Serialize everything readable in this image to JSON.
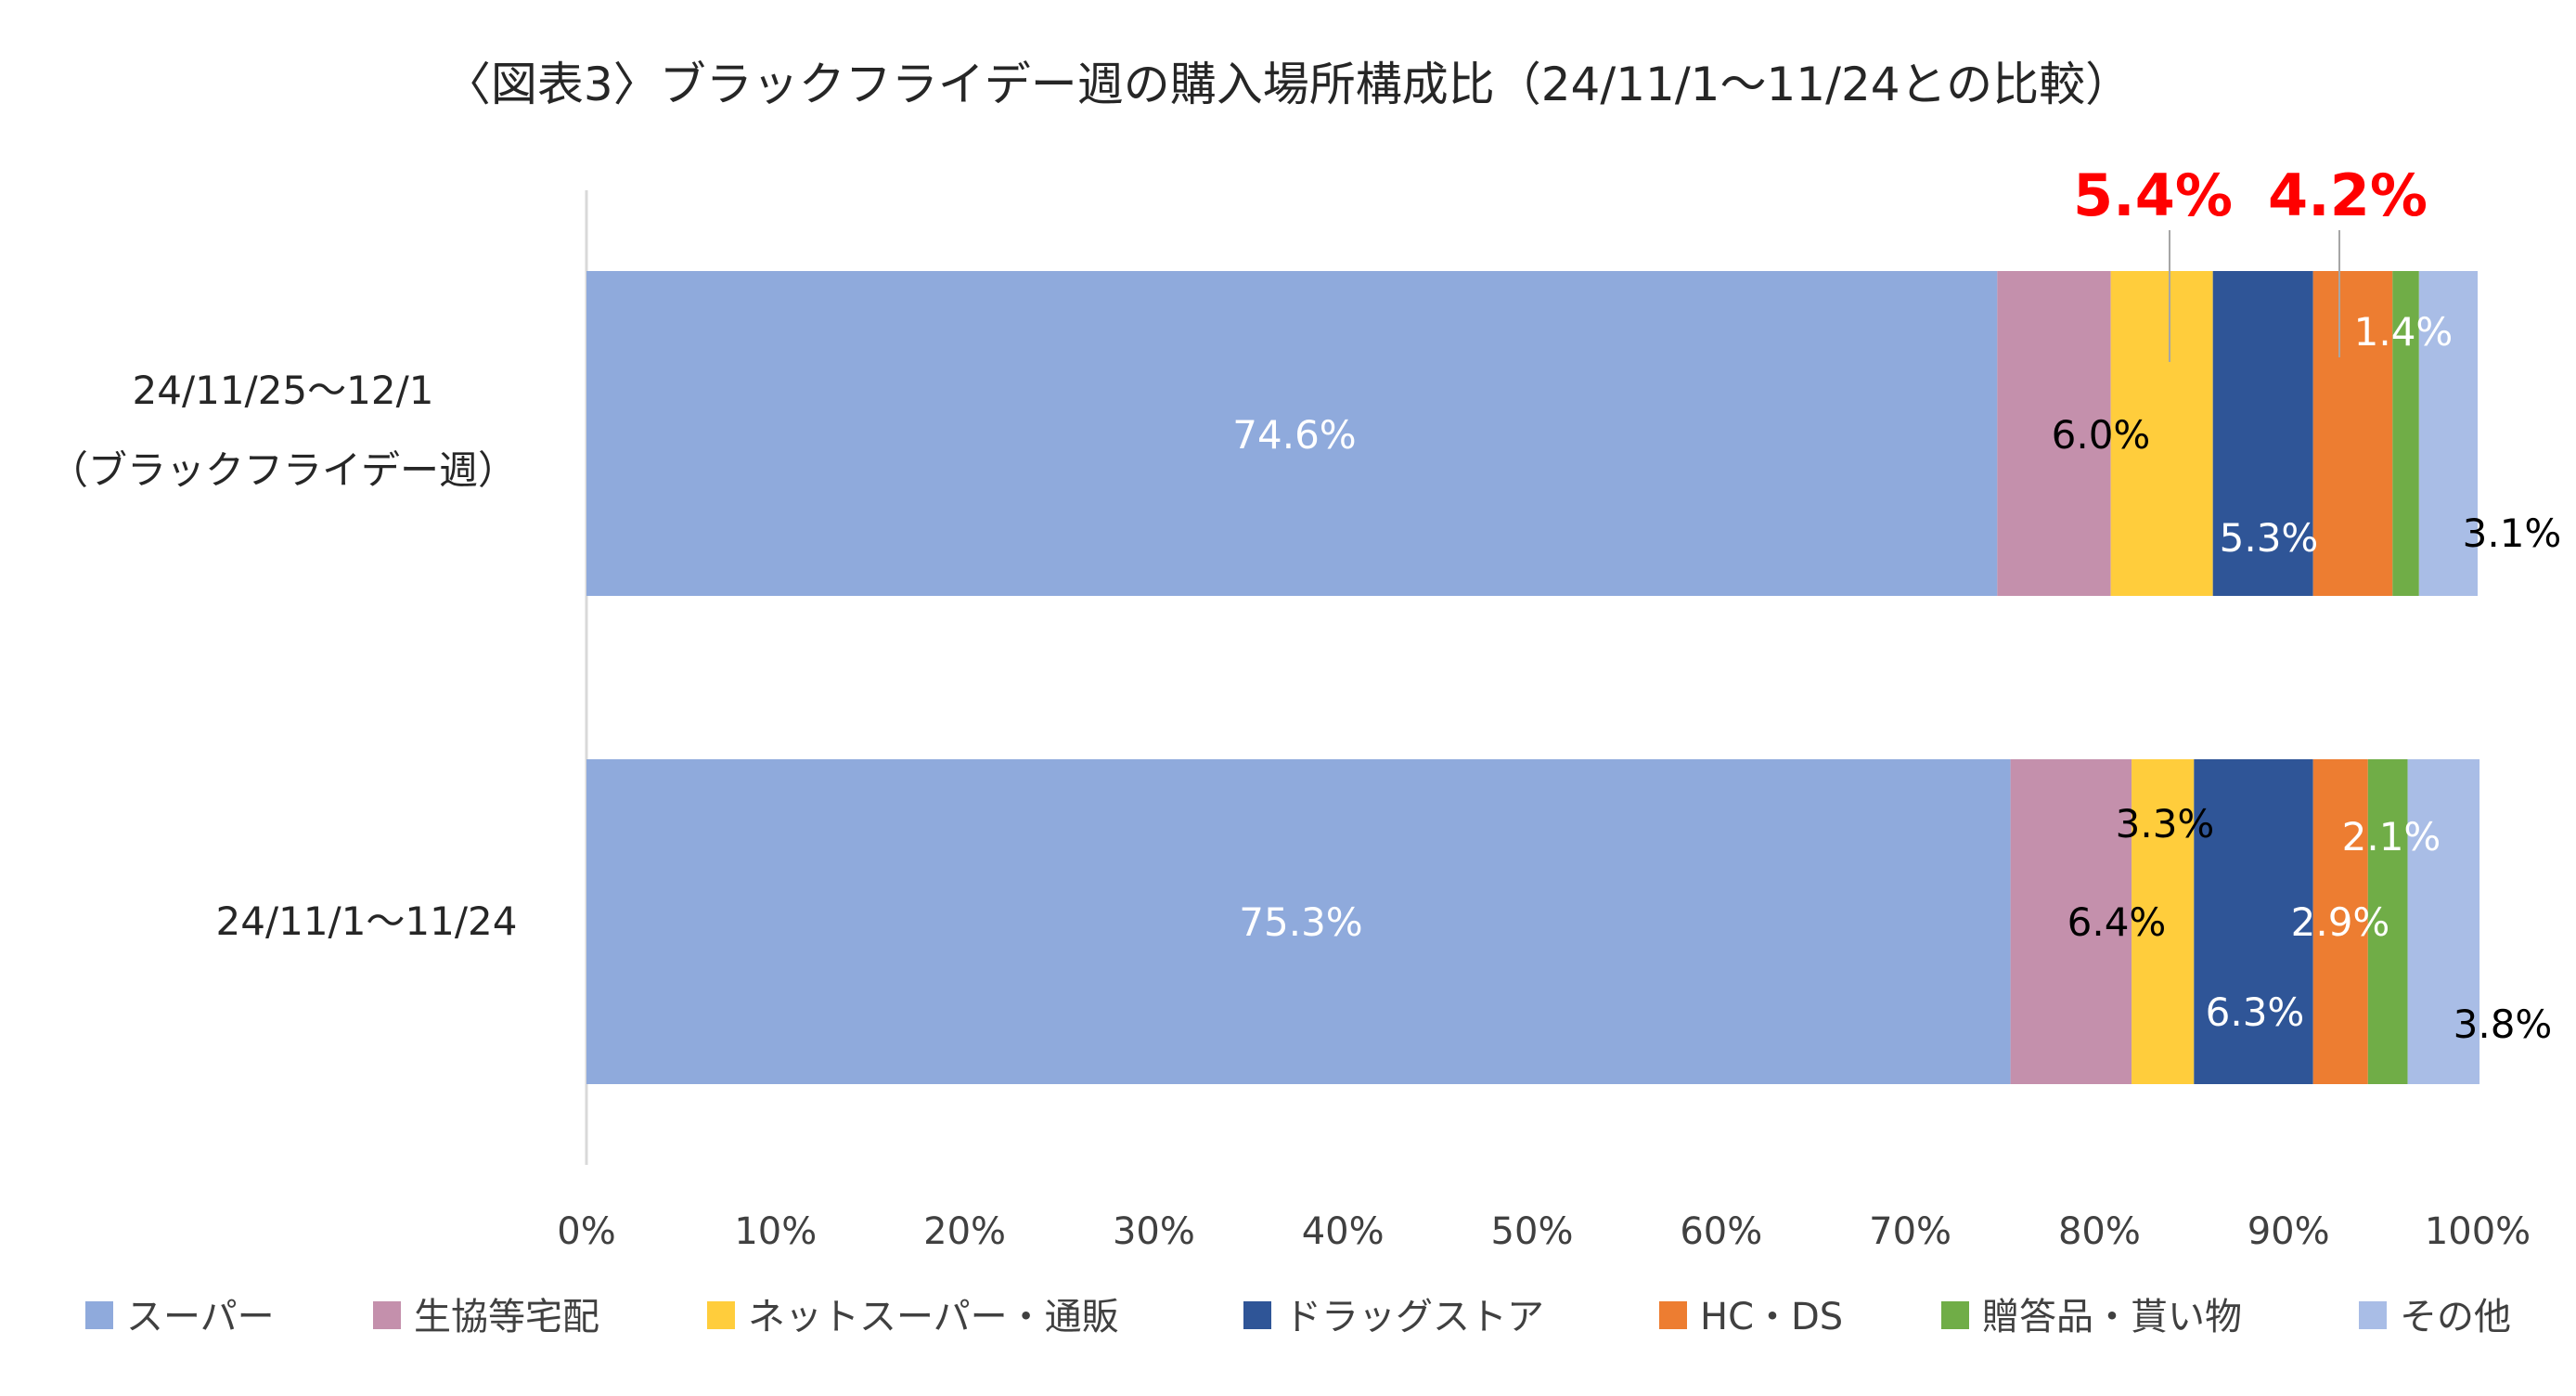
{
  "chart_data": {
    "type": "bar",
    "orientation": "horizontal",
    "stacked": "100%",
    "title": "〈図表3〉ブラックフライデー週の購入場所構成比（24/11/1～11/24との比較）",
    "categories": [
      {
        "lines": [
          "24/11/25～12/1",
          "（ブラックフライデー週）"
        ]
      },
      {
        "lines": [
          "24/11/1～11/24"
        ]
      }
    ],
    "series": [
      {
        "name": "スーパー",
        "color": "#8faadc",
        "values": [
          74.6,
          75.3
        ],
        "labels": [
          "74.6%",
          "75.3%"
        ],
        "label_color": "#ffffff"
      },
      {
        "name": "生協等宅配",
        "color": "#c490ac",
        "values": [
          6.0,
          6.4
        ],
        "labels": [
          "6.0%",
          "6.4%"
        ],
        "label_color": "#000000"
      },
      {
        "name": "ネットスーパー・通販",
        "color": "#ffcd3c",
        "values": [
          5.4,
          3.3
        ],
        "labels": [
          "5.4%",
          "3.3%"
        ],
        "label_color": "#000000"
      },
      {
        "name": "ドラッグストア",
        "color": "#2f5597",
        "values": [
          5.3,
          6.3
        ],
        "labels": [
          "5.3%",
          "6.3%"
        ],
        "label_color": "#ffffff"
      },
      {
        "name": "HC・DS",
        "color": "#ed7d31",
        "values": [
          4.2,
          2.9
        ],
        "labels": [
          "4.2%",
          "2.9%"
        ],
        "label_color": "#ffffff"
      },
      {
        "name": "贈答品・貰い物",
        "color": "#70ad47",
        "values": [
          1.4,
          2.1
        ],
        "labels": [
          "1.4%",
          "2.1%"
        ],
        "label_color": "#ffffff"
      },
      {
        "name": "その他",
        "color": "#a9bde6",
        "values": [
          3.1,
          3.8
        ],
        "labels": [
          "3.1%",
          "3.8%"
        ],
        "label_color": "#000000"
      }
    ],
    "highlight": [
      {
        "series": 2,
        "category": 0,
        "text": "5.4%",
        "color": "#ff0000"
      },
      {
        "series": 4,
        "category": 0,
        "text": "4.2%",
        "color": "#ff0000"
      }
    ],
    "x_ticks": [
      "0%",
      "10%",
      "20%",
      "30%",
      "40%",
      "50%",
      "60%",
      "70%",
      "80%",
      "90%",
      "100%"
    ],
    "xlim": [
      0,
      100
    ],
    "grid": false,
    "legend_position": "bottom"
  }
}
